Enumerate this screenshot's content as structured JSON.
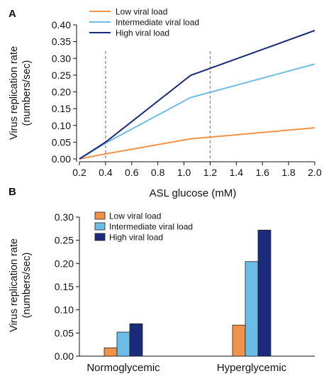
{
  "panels": [
    {
      "label": "A",
      "chart_data": {
        "type": "line",
        "xlabel": "ASL glucose (mM)",
        "ylabel_line1": "Virus replication rate",
        "ylabel_line2": "(numbers/sec)",
        "xlim": [
          0.2,
          2.0
        ],
        "ylim": [
          0.0,
          0.4
        ],
        "xticks": [
          0.2,
          0.4,
          0.6,
          0.8,
          1.0,
          1.2,
          1.4,
          1.6,
          1.8,
          2.0
        ],
        "xtick_labels": [
          "0.2",
          "0.4",
          "0.6",
          "0.8",
          "1.0",
          "1.2",
          "1.4",
          "1.6",
          "1.8",
          "2.0"
        ],
        "yticks": [
          0.0,
          0.05,
          0.1,
          0.15,
          0.2,
          0.25,
          0.3,
          0.35,
          0.4
        ],
        "ytick_labels": [
          "0.00",
          "0.05",
          "0.10",
          "0.15",
          "0.20",
          "0.25",
          "0.30",
          "0.35",
          "0.40"
        ],
        "reference_lines_x": [
          0.4,
          1.2
        ],
        "grid": false,
        "legend_position": "top-left",
        "series": [
          {
            "name": "Low viral load",
            "color": "#f0934a",
            "x": [
              0.2,
              0.4,
              1.05,
              2.0
            ],
            "y": [
              0.0,
              0.015,
              0.06,
              0.093
            ]
          },
          {
            "name": "Intermediate viral load",
            "color": "#6bbde6",
            "x": [
              0.2,
              0.4,
              1.05,
              2.0
            ],
            "y": [
              0.0,
              0.047,
              0.183,
              0.283
            ]
          },
          {
            "name": "High viral load",
            "color": "#1b2b7c",
            "x": [
              0.2,
              0.4,
              1.05,
              2.0
            ],
            "y": [
              0.0,
              0.05,
              0.249,
              0.383
            ]
          }
        ]
      }
    },
    {
      "label": "B",
      "chart_data": {
        "type": "bar",
        "xlabel": "",
        "ylabel_line1": "Virus replication rate",
        "ylabel_line2": "(numbers/sec)",
        "ylim": [
          0.0,
          0.3
        ],
        "yticks": [
          0.0,
          0.05,
          0.1,
          0.15,
          0.2,
          0.25,
          0.3
        ],
        "ytick_labels": [
          "0.00",
          "0.05",
          "0.10",
          "0.15",
          "0.20",
          "0.25",
          "0.30"
        ],
        "categories": [
          "Normoglycemic",
          "Hyperglycemic"
        ],
        "grid": false,
        "legend_position": "top-left",
        "series": [
          {
            "name": "Low viral load",
            "color": "#f0934a",
            "values": [
              0.018,
              0.067
            ]
          },
          {
            "name": "Intermediate viral load",
            "color": "#6bbde6",
            "values": [
              0.052,
              0.204
            ]
          },
          {
            "name": "High viral load",
            "color": "#1b2b7c",
            "values": [
              0.07,
              0.272
            ]
          }
        ]
      }
    }
  ]
}
